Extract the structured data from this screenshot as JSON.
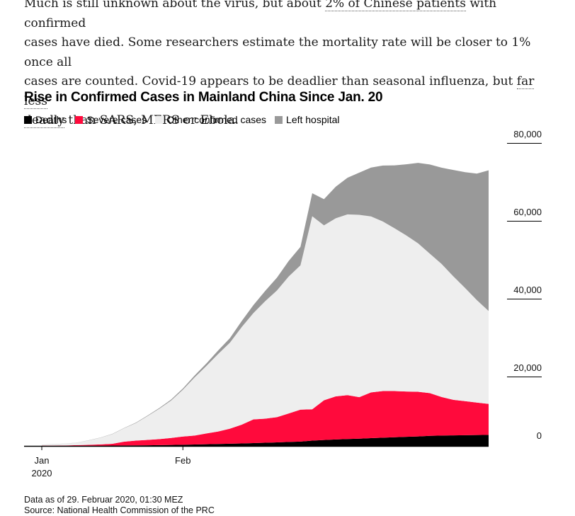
{
  "article": {
    "l1a": "Much is still unknown about the virus, but about ",
    "l1link": "2% of Chinese patients",
    "l1b": " with confirmed",
    "l2": "cases have died. Some researchers estimate the mortality rate will be closer to 1% once all",
    "l3a": "cases are counted. Covid-19 appears to be deadlier than seasonal influenza, but ",
    "l3link": "far less",
    "l4link": "deadly",
    "l4b": " than SARS, MERS or Ebola."
  },
  "footer": {
    "asof": "Data as of 29. Februar 2020, 01:30 MEZ",
    "source": "Source: National Health Commission of the PRC"
  },
  "colors": {
    "deaths": "#000000",
    "severe": "#ff0a3c",
    "other": "#eeeeee",
    "left": "#999999"
  },
  "chart_data": {
    "type": "area",
    "stacked": true,
    "title": "Rise in Confirmed Cases in Mainland China Since Jan. 20",
    "legend": [
      "Deaths",
      "Severe cases",
      "Other confirmed cases",
      "Left hospital"
    ],
    "x_day_offsets": [
      0,
      1,
      2,
      3,
      4,
      5,
      6,
      7,
      8,
      9,
      10,
      11,
      12,
      13,
      14,
      15,
      16,
      17,
      18,
      19,
      20,
      21,
      22,
      23,
      24,
      25,
      26,
      27,
      28,
      29,
      30,
      31,
      32,
      33,
      34,
      35,
      36,
      37,
      38
    ],
    "x_ticks": [
      {
        "day": 0,
        "label": "Jan",
        "sublabel": "2020"
      },
      {
        "day": 12,
        "label": "Feb"
      }
    ],
    "y_ticks": [
      {
        "value": 0,
        "label": "0"
      },
      {
        "value": 20000,
        "label": "20,000"
      },
      {
        "value": 40000,
        "label": "40,000"
      },
      {
        "value": 60000,
        "label": "60,000"
      },
      {
        "value": 80000,
        "label": "80,000"
      }
    ],
    "ylim": [
      0,
      80000
    ],
    "series": [
      {
        "name": "Deaths",
        "values": [
          6,
          9,
          17,
          25,
          41,
          56,
          80,
          106,
          132,
          170,
          213,
          259,
          304,
          361,
          425,
          490,
          563,
          636,
          722,
          811,
          908,
          1016,
          1113,
          1368,
          1523,
          1665,
          1770,
          1868,
          2004,
          2118,
          2236,
          2345,
          2442,
          2592,
          2663,
          2715,
          2744,
          2788,
          2835
        ]
      },
      {
        "name": "Severe cases",
        "values": [
          51,
          61,
          95,
          177,
          237,
          324,
          461,
          976,
          1239,
          1370,
          1527,
          1795,
          2110,
          2296,
          2788,
          3219,
          3859,
          4821,
          6101,
          6188,
          6484,
          7333,
          8204,
          8030,
          10204,
          11053,
          11272,
          10644,
          11741,
          11977,
          11864,
          11633,
          11477,
          10968,
          9915,
          9126,
          8752,
          8346,
          7952
        ]
      },
      {
        "name": "Other confirmed cases",
        "values": [
          218,
          401,
          445,
          632,
          1133,
          1730,
          2489,
          3471,
          4496,
          6153,
          7838,
          9605,
          12019,
          14961,
          17337,
          19911,
          22103,
          25067,
          27306,
          30180,
          32549,
          35174,
          37070,
          49591,
          44933,
          45767,
          46434,
          46853,
          45201,
          43556,
          41811,
          40101,
          38128,
          35837,
          34172,
          31718,
          29079,
          26325,
          23881
        ]
      },
      {
        "name": "Left hospital",
        "values": [
          25,
          25,
          25,
          34,
          38,
          49,
          51,
          60,
          103,
          124,
          171,
          243,
          328,
          475,
          632,
          892,
          1153,
          1540,
          2050,
          2649,
          3281,
          3996,
          4740,
          5911,
          6723,
          8096,
          9419,
          10844,
          12552,
          14376,
          16155,
          18264,
          20659,
          22888,
          24734,
          27323,
          29745,
          32495,
          36117
        ]
      }
    ]
  }
}
